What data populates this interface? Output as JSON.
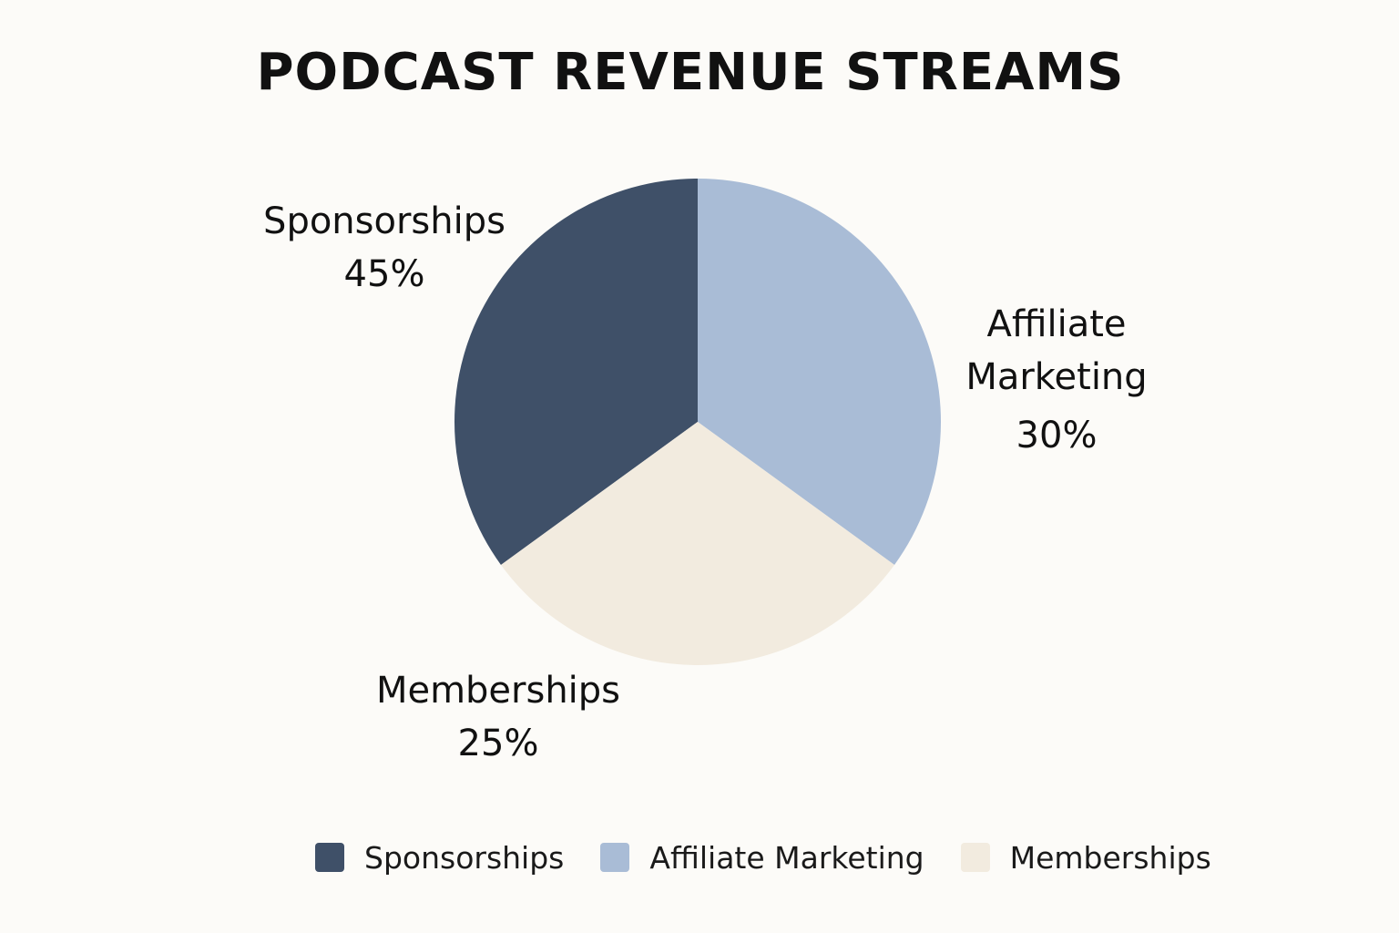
{
  "chart_data": {
    "type": "pie",
    "title": "PODCAST REVENUE STREAMS",
    "slices": [
      {
        "label": "Sponsorships",
        "value": 45,
        "value_label": "45%",
        "color": "#3f5068"
      },
      {
        "label": "Affiliate Marketing",
        "label_lines": [
          "Affiliate",
          "Marketing"
        ],
        "value": 30,
        "value_label": "30%",
        "color": "#a9bcd6"
      },
      {
        "label": "Memberships",
        "value": 25,
        "value_label": "25%",
        "color": "#f2ebdf"
      }
    ],
    "legend": {
      "placement": "bottom",
      "items": [
        "Sponsorships",
        "Affiliate Marketing",
        "Memberships"
      ]
    }
  }
}
